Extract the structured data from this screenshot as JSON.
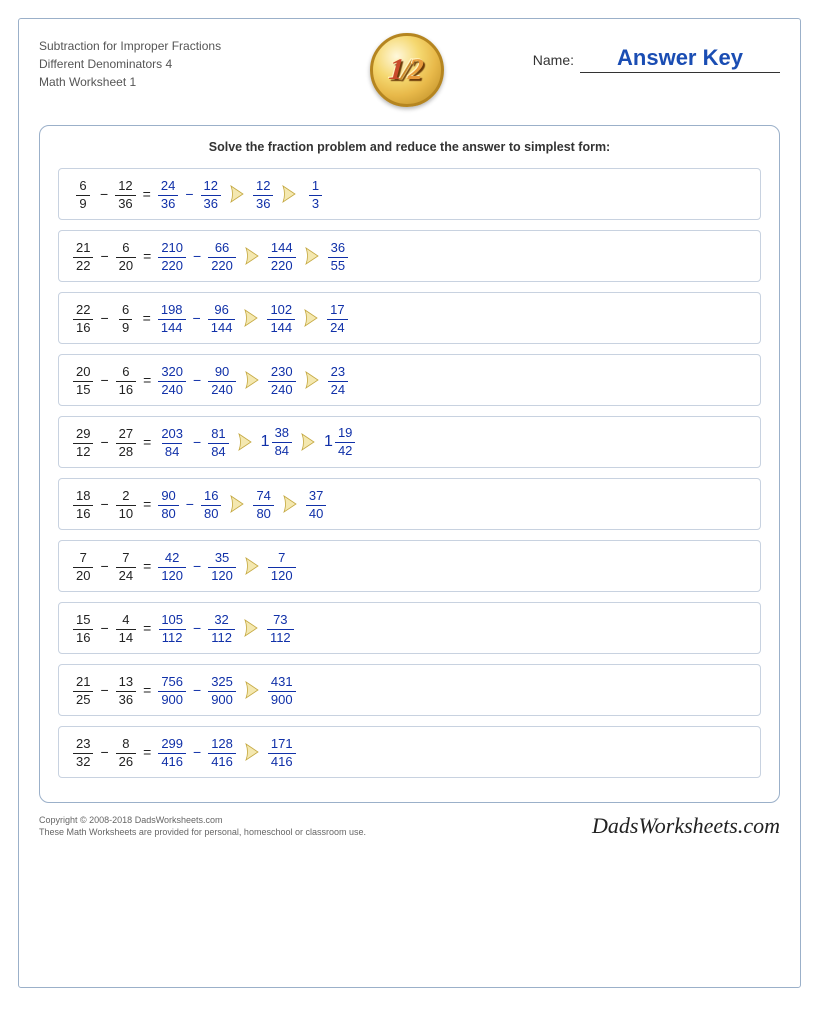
{
  "header": {
    "title_line1": "Subtraction for Improper Fractions",
    "title_line2": "Different Denominators 4",
    "title_line3": "Math Worksheet 1",
    "name_label": "Name:",
    "answer_key": "Answer Key"
  },
  "instruction": "Solve the fraction problem and reduce the answer to simplest form:",
  "colors": {
    "problem_text": "#222222",
    "answer_text": "#1030a8",
    "border": "#9bb0c9",
    "row_border": "#c8d2e0",
    "arrow_fill": "#f4e8b0",
    "arrow_stroke": "#c4a840"
  },
  "problems": [
    {
      "left": [
        {
          "n": "6",
          "d": "9"
        },
        {
          "n": "12",
          "d": "36"
        }
      ],
      "steps": [
        [
          {
            "n": "24",
            "d": "36"
          },
          {
            "op": "−"
          },
          {
            "n": "12",
            "d": "36"
          }
        ],
        [
          {
            "n": "12",
            "d": "36"
          }
        ],
        [
          {
            "n": "1",
            "d": "3"
          }
        ]
      ]
    },
    {
      "left": [
        {
          "n": "21",
          "d": "22"
        },
        {
          "n": "6",
          "d": "20"
        }
      ],
      "steps": [
        [
          {
            "n": "210",
            "d": "220"
          },
          {
            "op": "−"
          },
          {
            "n": "66",
            "d": "220"
          }
        ],
        [
          {
            "n": "144",
            "d": "220"
          }
        ],
        [
          {
            "n": "36",
            "d": "55"
          }
        ]
      ]
    },
    {
      "left": [
        {
          "n": "22",
          "d": "16"
        },
        {
          "n": "6",
          "d": "9"
        }
      ],
      "steps": [
        [
          {
            "n": "198",
            "d": "144"
          },
          {
            "op": "−"
          },
          {
            "n": "96",
            "d": "144"
          }
        ],
        [
          {
            "n": "102",
            "d": "144"
          }
        ],
        [
          {
            "n": "17",
            "d": "24"
          }
        ]
      ]
    },
    {
      "left": [
        {
          "n": "20",
          "d": "15"
        },
        {
          "n": "6",
          "d": "16"
        }
      ],
      "steps": [
        [
          {
            "n": "320",
            "d": "240"
          },
          {
            "op": "−"
          },
          {
            "n": "90",
            "d": "240"
          }
        ],
        [
          {
            "n": "230",
            "d": "240"
          }
        ],
        [
          {
            "n": "23",
            "d": "24"
          }
        ]
      ]
    },
    {
      "left": [
        {
          "n": "29",
          "d": "12"
        },
        {
          "n": "27",
          "d": "28"
        }
      ],
      "steps": [
        [
          {
            "n": "203",
            "d": "84"
          },
          {
            "op": "−"
          },
          {
            "n": "81",
            "d": "84"
          }
        ],
        [
          {
            "w": "1",
            "n": "38",
            "d": "84"
          }
        ],
        [
          {
            "w": "1",
            "n": "19",
            "d": "42"
          }
        ]
      ]
    },
    {
      "left": [
        {
          "n": "18",
          "d": "16"
        },
        {
          "n": "2",
          "d": "10"
        }
      ],
      "steps": [
        [
          {
            "n": "90",
            "d": "80"
          },
          {
            "op": "−"
          },
          {
            "n": "16",
            "d": "80"
          }
        ],
        [
          {
            "n": "74",
            "d": "80"
          }
        ],
        [
          {
            "n": "37",
            "d": "40"
          }
        ]
      ]
    },
    {
      "left": [
        {
          "n": "7",
          "d": "20"
        },
        {
          "n": "7",
          "d": "24"
        }
      ],
      "steps": [
        [
          {
            "n": "42",
            "d": "120"
          },
          {
            "op": "−"
          },
          {
            "n": "35",
            "d": "120"
          }
        ],
        [
          {
            "n": "7",
            "d": "120"
          }
        ]
      ]
    },
    {
      "left": [
        {
          "n": "15",
          "d": "16"
        },
        {
          "n": "4",
          "d": "14"
        }
      ],
      "steps": [
        [
          {
            "n": "105",
            "d": "112"
          },
          {
            "op": "−"
          },
          {
            "n": "32",
            "d": "112"
          }
        ],
        [
          {
            "n": "73",
            "d": "112"
          }
        ]
      ]
    },
    {
      "left": [
        {
          "n": "21",
          "d": "25"
        },
        {
          "n": "13",
          "d": "36"
        }
      ],
      "steps": [
        [
          {
            "n": "756",
            "d": "900"
          },
          {
            "op": "−"
          },
          {
            "n": "325",
            "d": "900"
          }
        ],
        [
          {
            "n": "431",
            "d": "900"
          }
        ]
      ]
    },
    {
      "left": [
        {
          "n": "23",
          "d": "32"
        },
        {
          "n": "8",
          "d": "26"
        }
      ],
      "steps": [
        [
          {
            "n": "299",
            "d": "416"
          },
          {
            "op": "−"
          },
          {
            "n": "128",
            "d": "416"
          }
        ],
        [
          {
            "n": "171",
            "d": "416"
          }
        ]
      ]
    }
  ],
  "footer": {
    "copyright": "Copyright © 2008-2018 DadsWorksheets.com",
    "tagline": "These Math Worksheets are provided for personal, homeschool or classroom use.",
    "site": "DadsWorksheets.com"
  }
}
